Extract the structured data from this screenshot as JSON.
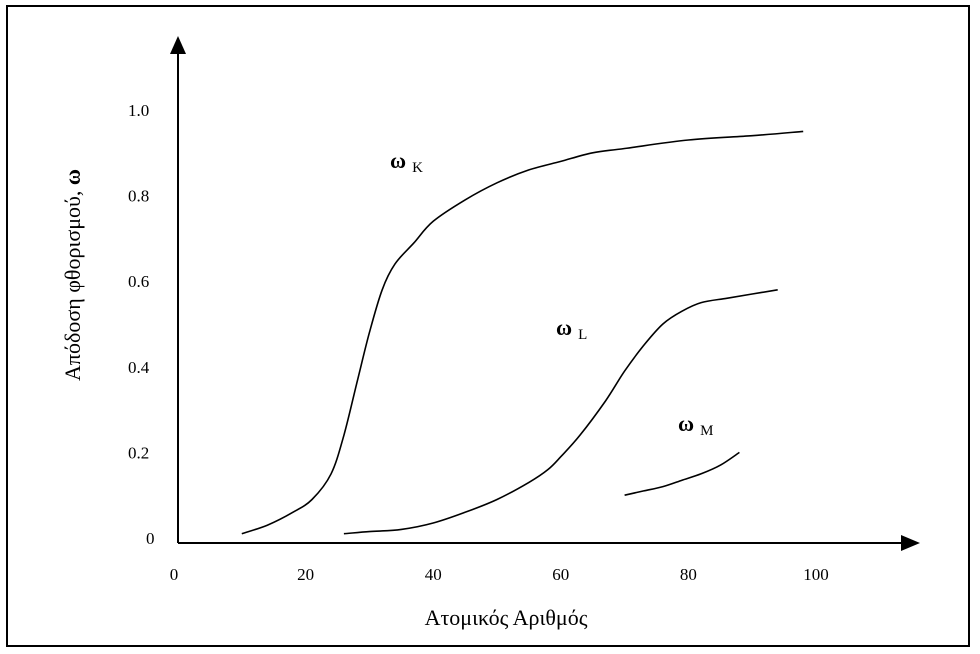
{
  "chart_data": {
    "type": "line",
    "xlabel": "Ατομικός Αριθμός",
    "ylabel_main": "Απόδοση φθορισμού, ",
    "ylabel_symbol": "ω",
    "x_ticks": [
      "0",
      "20",
      "40",
      "60",
      "80",
      "100"
    ],
    "y_ticks": [
      "0",
      "0.2",
      "0.4",
      "0.6",
      "0.8",
      "1.0"
    ],
    "xlim": [
      0,
      115
    ],
    "ylim": [
      0,
      1.15
    ],
    "series": [
      {
        "name": "ω K",
        "symbol": "ω",
        "subscript": "K",
        "x": [
          10,
          14,
          18,
          21,
          24,
          26,
          28,
          30,
          32,
          34,
          37,
          40,
          45,
          50,
          55,
          60,
          65,
          70,
          80,
          90,
          98
        ],
        "y": [
          0.01,
          0.03,
          0.06,
          0.09,
          0.15,
          0.24,
          0.36,
          0.48,
          0.58,
          0.64,
          0.69,
          0.74,
          0.79,
          0.83,
          0.86,
          0.88,
          0.9,
          0.91,
          0.93,
          0.94,
          0.95
        ]
      },
      {
        "name": "ω L",
        "symbol": "ω",
        "subscript": "L",
        "x": [
          26,
          30,
          35,
          40,
          45,
          50,
          55,
          58,
          60,
          63,
          67,
          70,
          73,
          76,
          79,
          82,
          86,
          90,
          94
        ],
        "y": [
          0.01,
          0.015,
          0.02,
          0.035,
          0.06,
          0.09,
          0.13,
          0.16,
          0.19,
          0.24,
          0.32,
          0.39,
          0.45,
          0.5,
          0.53,
          0.55,
          0.56,
          0.57,
          0.58
        ]
      },
      {
        "name": "ω M",
        "symbol": "ω",
        "subscript": "M",
        "x": [
          70,
          73,
          76,
          79,
          82,
          85,
          88
        ],
        "y": [
          0.1,
          0.11,
          0.12,
          0.135,
          0.15,
          0.17,
          0.2
        ]
      }
    ]
  }
}
